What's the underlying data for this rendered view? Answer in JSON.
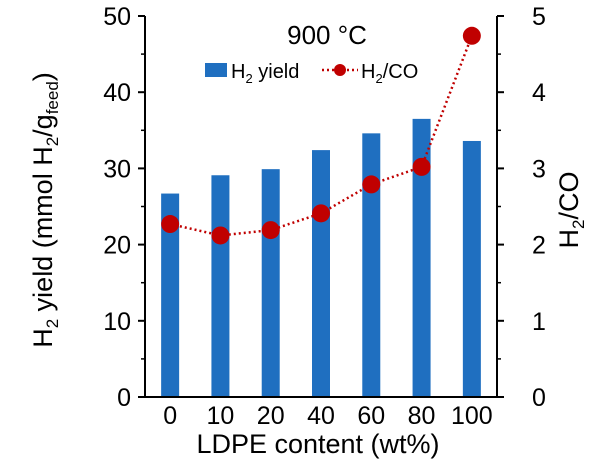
{
  "chart_data": {
    "type": "bar+line",
    "categories": [
      "0",
      "10",
      "20",
      "40",
      "60",
      "80",
      "100"
    ],
    "xlabel": "LDPE content (wt%)",
    "annotation": "900 °C",
    "y_left": {
      "label_main": "H",
      "label_sub": "2",
      "label_rest": " yield (mmol H",
      "label_sub2": "2",
      "label_slash": "/g",
      "label_sub3": "feed",
      "label_close": ")",
      "ylim": [
        0,
        50
      ],
      "ticks": [
        "0",
        "10",
        "20",
        "30",
        "40",
        "50"
      ]
    },
    "y_right": {
      "label_main": "H",
      "label_sub": "2",
      "label_rest": "/CO",
      "ylim": [
        0,
        5
      ],
      "ticks": [
        "0",
        "1",
        "2",
        "3",
        "4",
        "5"
      ]
    },
    "legend": {
      "bar_main": "H",
      "bar_sub": "2",
      "bar_rest": " yield",
      "line_main": "H",
      "line_sub": "2",
      "line_rest": "/CO"
    },
    "series": [
      {
        "name": "H2 yield",
        "type": "bar",
        "axis": "left",
        "values": [
          26.7,
          29.1,
          29.9,
          32.4,
          34.6,
          36.5,
          33.6
        ],
        "color": "#1f6fc0"
      },
      {
        "name": "H2/CO",
        "type": "line",
        "axis": "right",
        "values": [
          2.27,
          2.12,
          2.19,
          2.41,
          2.79,
          3.02,
          4.74
        ],
        "color": "#c00000"
      }
    ],
    "grid": false,
    "legend_position": "top"
  }
}
